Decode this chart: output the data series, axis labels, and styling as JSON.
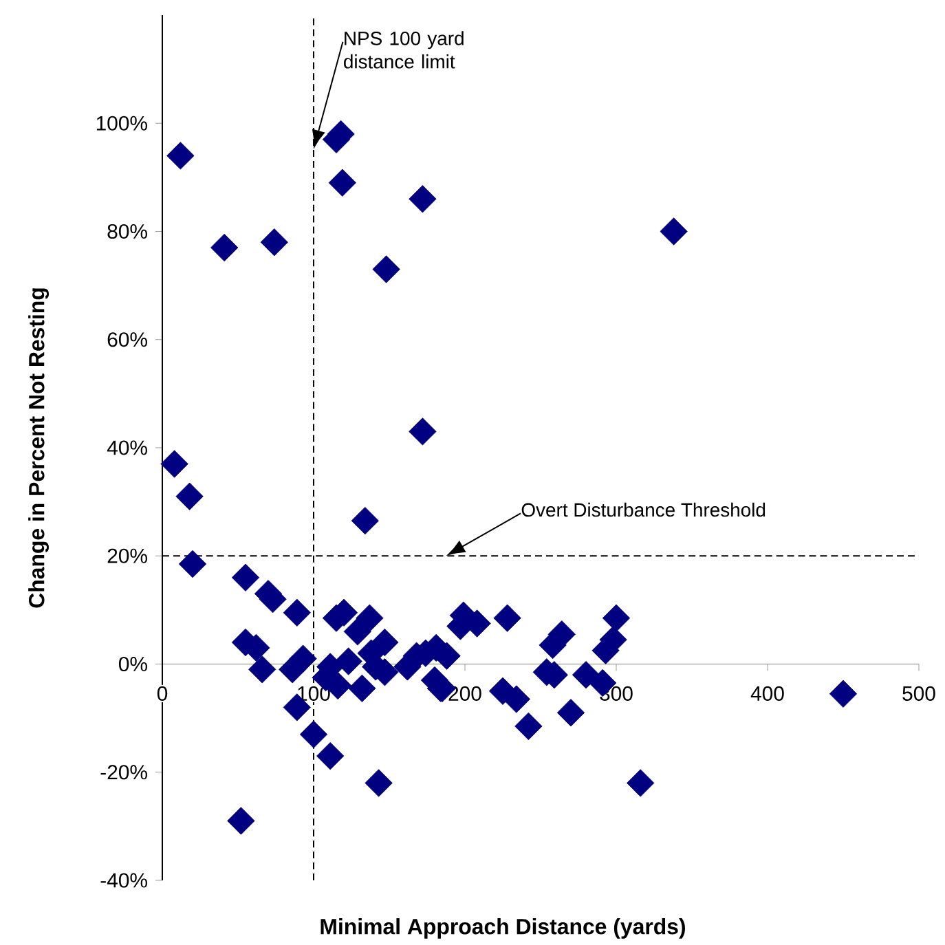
{
  "chart_data": {
    "type": "scatter",
    "xlabel": "Minimal Approach Distance (yards)",
    "ylabel": "Change in Percent Not Resting",
    "color": "#000080",
    "marker": "diamond",
    "xlim": [
      0,
      500
    ],
    "xticks": [
      0,
      100,
      200,
      300,
      400,
      500
    ],
    "ylim": [
      -40,
      120
    ],
    "yticks": [
      {
        "value": -40,
        "label": "-40%"
      },
      {
        "value": -20,
        "label": "-20%"
      },
      {
        "value": 0,
        "label": "0%"
      },
      {
        "value": 20,
        "label": "20%"
      },
      {
        "value": 40,
        "label": "40%"
      },
      {
        "value": 60,
        "label": "60%"
      },
      {
        "value": 80,
        "label": "80%"
      },
      {
        "value": 100,
        "label": "100%"
      }
    ],
    "x": [
      12,
      115,
      118,
      119,
      172,
      338,
      41,
      74,
      148,
      172,
      8,
      18,
      134,
      20,
      55,
      70,
      73,
      89,
      55,
      62,
      66,
      86,
      93,
      89,
      100,
      111,
      143,
      52,
      120,
      115,
      137,
      129,
      147,
      111,
      108,
      116,
      123,
      132,
      141,
      147,
      162,
      174,
      181,
      180,
      185,
      138,
      199,
      197,
      208,
      228,
      168,
      188,
      184,
      225,
      234,
      242,
      264,
      258,
      254,
      259,
      270,
      280,
      291,
      300,
      298,
      293,
      316,
      450
    ],
    "values": [
      94,
      97,
      98,
      89,
      86,
      80,
      77,
      78,
      73,
      43,
      37,
      31,
      26.5,
      18.5,
      16,
      13,
      12,
      9.5,
      4,
      3,
      -1,
      -1,
      1,
      -8,
      -13,
      -17,
      -22,
      -29,
      9.5,
      8.5,
      8.5,
      6,
      4,
      -0.5,
      -2.5,
      -4,
      0.5,
      -4.5,
      -0.5,
      -1.5,
      -0.5,
      2,
      3,
      -3,
      -4.5,
      2,
      9,
      7,
      7.5,
      8.5,
      1.5,
      1.5,
      -4.5,
      -5,
      -6.5,
      -11.5,
      5.5,
      3.5,
      -1.5,
      -2,
      -9,
      -2,
      -3.5,
      8.5,
      4.5,
      2.5,
      -22,
      -5.5
    ],
    "ref_lines": [
      {
        "axis": "x",
        "value": 100,
        "line_style": "dashed",
        "label": "NPS 100 yard distance limit"
      },
      {
        "axis": "y",
        "value": 20,
        "line_style": "dashed",
        "label": "Overt Disturbance Threshold"
      }
    ]
  }
}
